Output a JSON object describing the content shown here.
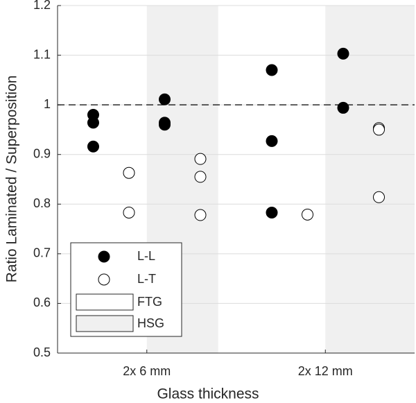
{
  "chart_data": {
    "type": "scatter",
    "xlabel": "Glass thickness",
    "ylabel": "Ratio Laminated / Superposition",
    "xlim": [
      0.5,
      2.5
    ],
    "xticks": [
      {
        "value": 1,
        "label": "2x 6 mm"
      },
      {
        "value": 2,
        "label": "2x 12 mm"
      }
    ],
    "ylim": [
      0.5,
      1.2
    ],
    "yticks": [
      0.5,
      0.6,
      0.7,
      0.8,
      0.9,
      1,
      1.1,
      1.2
    ],
    "grid": true,
    "reference_line": 1,
    "regions": [
      {
        "name": "FTG",
        "color": "#ffffff",
        "spans": [
          [
            0.5,
            1
          ],
          [
            1.4,
            2
          ]
        ]
      },
      {
        "name": "HSG",
        "color": "#f0f0f0",
        "spans": [
          [
            1,
            1.4
          ],
          [
            2,
            2.5
          ]
        ]
      }
    ],
    "series": [
      {
        "name": "L-L",
        "color": "#000000",
        "filled": true,
        "x": [
          0.7,
          0.7,
          0.7,
          1.1,
          1.1,
          1.1,
          1.7,
          1.7,
          1.7,
          2.1,
          2.1
        ],
        "values": [
          0.98,
          0.964,
          0.916,
          1.011,
          0.964,
          0.96,
          1.07,
          0.927,
          0.783,
          1.103,
          0.994
        ]
      },
      {
        "name": "L-T",
        "color": "#000000",
        "filled": false,
        "x": [
          0.9,
          0.9,
          1.3,
          1.3,
          1.3,
          1.9,
          2.3,
          2.3,
          2.3
        ],
        "values": [
          0.863,
          0.783,
          0.891,
          0.855,
          0.778,
          0.779,
          0.953,
          0.95,
          0.814
        ]
      }
    ]
  }
}
